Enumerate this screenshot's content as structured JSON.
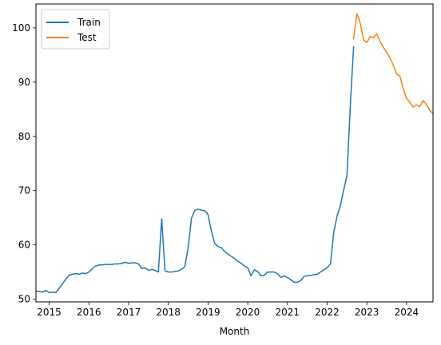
{
  "chart_data": {
    "type": "line",
    "xlabel": "Month",
    "ylabel": "",
    "xlim": [
      "2014-09",
      "2024-09"
    ],
    "ylim": [
      49.5,
      104.4
    ],
    "x_ticks": [
      "2015",
      "2016",
      "2017",
      "2018",
      "2019",
      "2020",
      "2021",
      "2022",
      "2023",
      "2024"
    ],
    "y_ticks": [
      50,
      60,
      70,
      80,
      90,
      100
    ],
    "grid": false,
    "legend_position": "upper left",
    "series": [
      {
        "name": "Train",
        "color": "#1f77b4",
        "x": [
          "2014-09",
          "2014-10",
          "2014-11",
          "2014-12",
          "2015-01",
          "2015-02",
          "2015-03",
          "2015-04",
          "2015-05",
          "2015-06",
          "2015-07",
          "2015-08",
          "2015-09",
          "2015-10",
          "2015-11",
          "2015-12",
          "2016-01",
          "2016-02",
          "2016-03",
          "2016-04",
          "2016-05",
          "2016-06",
          "2016-07",
          "2016-08",
          "2016-09",
          "2016-10",
          "2016-11",
          "2016-12",
          "2017-01",
          "2017-02",
          "2017-03",
          "2017-04",
          "2017-05",
          "2017-06",
          "2017-07",
          "2017-08",
          "2017-09",
          "2017-10",
          "2017-11",
          "2017-12",
          "2018-01",
          "2018-02",
          "2018-03",
          "2018-04",
          "2018-05",
          "2018-06",
          "2018-07",
          "2018-08",
          "2018-09",
          "2018-10",
          "2018-11",
          "2018-12",
          "2019-01",
          "2019-02",
          "2019-03",
          "2019-04",
          "2019-05",
          "2019-06",
          "2019-07",
          "2019-08",
          "2019-09",
          "2019-10",
          "2019-11",
          "2019-12",
          "2020-01",
          "2020-02",
          "2020-03",
          "2020-04",
          "2020-05",
          "2020-06",
          "2020-07",
          "2020-08",
          "2020-09",
          "2020-10",
          "2020-11",
          "2020-12",
          "2021-01",
          "2021-02",
          "2021-03",
          "2021-04",
          "2021-05",
          "2021-06",
          "2021-07",
          "2021-08",
          "2021-09",
          "2021-10",
          "2021-11",
          "2021-12",
          "2022-01",
          "2022-02",
          "2022-03",
          "2022-04",
          "2022-05",
          "2022-06",
          "2022-07",
          "2022-08",
          "2022-09"
        ],
        "values": [
          51.5,
          51.4,
          51.3,
          51.6,
          51.2,
          51.3,
          51.2,
          52.0,
          52.8,
          53.7,
          54.4,
          54.6,
          54.7,
          54.6,
          54.8,
          54.7,
          55.0,
          55.6,
          56.1,
          56.3,
          56.3,
          56.4,
          56.4,
          56.4,
          56.5,
          56.5,
          56.6,
          56.8,
          56.6,
          56.7,
          56.7,
          56.5,
          55.6,
          55.8,
          55.3,
          55.5,
          55.3,
          55.0,
          64.8,
          55.2,
          55.0,
          55.0,
          55.1,
          55.2,
          55.5,
          56.0,
          59.5,
          64.9,
          66.3,
          66.6,
          66.4,
          66.3,
          65.6,
          62.6,
          60.3,
          59.7,
          59.5,
          58.8,
          58.3,
          57.9,
          57.5,
          57.0,
          56.6,
          56.1,
          55.8,
          54.3,
          55.4,
          55.1,
          54.3,
          54.4,
          55.0,
          55.0,
          55.0,
          54.7,
          54.0,
          54.3,
          54.0,
          53.6,
          53.1,
          53.1,
          53.4,
          54.2,
          54.3,
          54.4,
          54.5,
          54.6,
          55.0,
          55.4,
          55.8,
          56.5,
          62.3,
          65.3,
          67.2,
          70.1,
          72.8,
          85.6,
          96.5
        ]
      },
      {
        "name": "Test",
        "color": "#ff7f0e",
        "x": [
          "2022-09",
          "2022-10",
          "2022-11",
          "2022-12",
          "2023-01",
          "2023-02",
          "2023-03",
          "2023-04",
          "2023-05",
          "2023-06",
          "2023-07",
          "2023-08",
          "2023-09",
          "2023-10",
          "2023-11",
          "2023-12",
          "2024-01",
          "2024-02",
          "2024-03",
          "2024-04",
          "2024-05",
          "2024-06",
          "2024-07",
          "2024-08",
          "2024-09"
        ],
        "values": [
          98.0,
          102.6,
          100.9,
          97.8,
          97.3,
          98.4,
          98.2,
          98.9,
          97.5,
          96.4,
          95.5,
          94.5,
          93.1,
          91.5,
          91.1,
          88.8,
          87.0,
          86.3,
          85.4,
          85.8,
          85.5,
          86.6,
          85.9,
          84.8,
          84.2
        ]
      }
    ]
  }
}
